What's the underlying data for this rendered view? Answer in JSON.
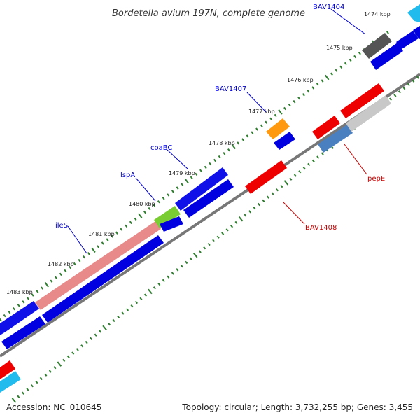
{
  "title": "Bordetella avium 197N, complete genome",
  "ticks": [
    "1474 kbp",
    "1475 kbp",
    "1476 kbp",
    "1477 kbp",
    "1478 kbp",
    "1479 kbp",
    "1480 kbp",
    "1481 kbp",
    "1482 kbp",
    "1483 kbp"
  ],
  "gene_labels": {
    "bav1404": "BAV1404",
    "bav1407": "BAV1407",
    "coabc": "coaBC",
    "lspa": "lspA",
    "iles": "ileS",
    "pepe": "pepE",
    "bav1408": "BAV1408"
  },
  "footer": {
    "accession": "Accession: NC_010645",
    "stats": "Topology: circular; Length: 3,732,255 bp; Genes: 3,455"
  },
  "colors": {
    "forward_label": "#0000cc",
    "reverse_label": "#cc0000",
    "backbone": "#777777",
    "tick_mark": "#2f7d2f",
    "blue_gene": "#0000e0",
    "red_gene": "#ee0000",
    "salmon_gene": "#e88a8a",
    "green_gene": "#7acc33",
    "orange_gene": "#ff9900",
    "gray_gene": "#555555",
    "light_gray_gene": "#c8c8c8",
    "steel_gene": "#4a80c0",
    "cyan_gene": "#22bbee"
  }
}
